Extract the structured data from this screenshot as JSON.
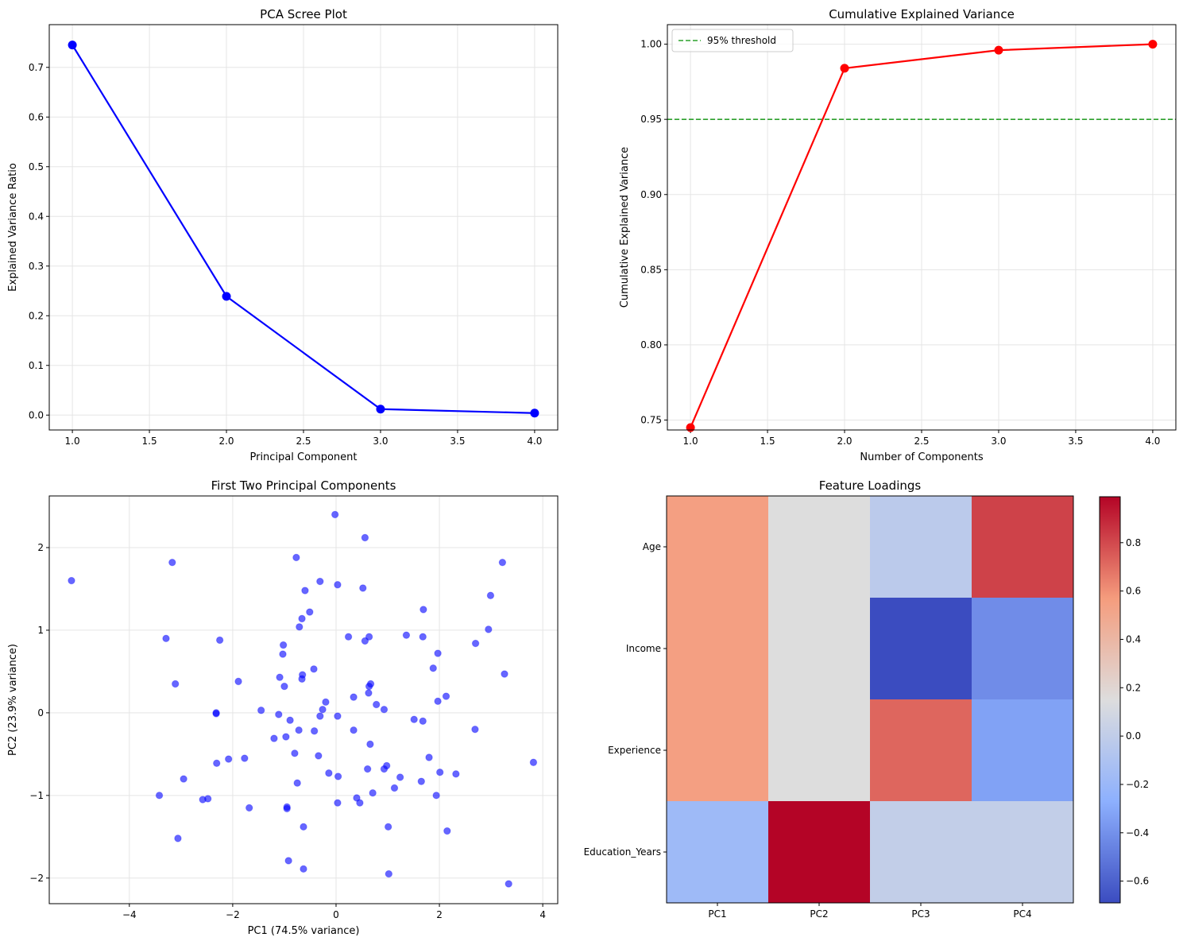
{
  "chart_data": [
    {
      "type": "line",
      "title": "PCA Scree Plot",
      "xlabel": "Principal Component",
      "ylabel": "Explained Variance Ratio",
      "x": [
        1,
        2,
        3,
        4
      ],
      "series": [
        {
          "values": [
            0.745,
            0.239,
            0.012,
            0.004
          ],
          "color": "#0000ff",
          "marker": "circle"
        }
      ],
      "xlim": [
        0.85,
        4.15
      ],
      "ylim": [
        -0.03,
        0.786
      ],
      "xticks": [
        1.0,
        1.5,
        2.0,
        2.5,
        3.0,
        3.5,
        4.0
      ],
      "xtick_labels": [
        "1.0",
        "1.5",
        "2.0",
        "2.5",
        "3.0",
        "3.5",
        "4.0"
      ],
      "yticks": [
        0.0,
        0.1,
        0.2,
        0.3,
        0.4,
        0.5,
        0.6,
        0.7
      ],
      "ytick_labels": [
        "0.0",
        "0.1",
        "0.2",
        "0.3",
        "0.4",
        "0.5",
        "0.6",
        "0.7"
      ],
      "grid": true
    },
    {
      "type": "line",
      "title": "Cumulative Explained Variance",
      "xlabel": "Number of Components",
      "ylabel": "Cumulative Explained Variance",
      "x": [
        1,
        2,
        3,
        4
      ],
      "series": [
        {
          "values": [
            0.745,
            0.984,
            0.996,
            1.0
          ],
          "color": "#ff0000",
          "marker": "circle"
        }
      ],
      "hline": {
        "y": 0.95,
        "label": "95% threshold",
        "color": "#2ca02c",
        "style": "dashed"
      },
      "legend": "top-left",
      "xlim": [
        0.85,
        4.15
      ],
      "ylim": [
        0.7434,
        1.013
      ],
      "xticks": [
        1.0,
        1.5,
        2.0,
        2.5,
        3.0,
        3.5,
        4.0
      ],
      "xtick_labels": [
        "1.0",
        "1.5",
        "2.0",
        "2.5",
        "3.0",
        "3.5",
        "4.0"
      ],
      "yticks": [
        0.75,
        0.8,
        0.85,
        0.9,
        0.95,
        1.0
      ],
      "ytick_labels": [
        "0.75",
        "0.80",
        "0.85",
        "0.90",
        "0.95",
        "1.00"
      ],
      "grid": true
    },
    {
      "type": "scatter",
      "title": "First Two Principal Components",
      "xlabel": "PC1 (74.5% variance)",
      "ylabel": "PC2 (23.9% variance)",
      "color": "#0000ff",
      "alpha": 0.6,
      "xlim": [
        -5.55,
        4.29
      ],
      "ylim": [
        -2.31,
        2.625
      ],
      "xticks": [
        -4,
        -2,
        0,
        2,
        4
      ],
      "xtick_labels": [
        "−4",
        "−2",
        "0",
        "2",
        "4"
      ],
      "yticks": [
        -2,
        -1,
        0,
        1,
        2
      ],
      "ytick_labels": [
        "−2",
        "−1",
        "0",
        "1",
        "2"
      ],
      "grid": true,
      "points": [
        [
          -0.02,
          2.4
        ],
        [
          -3.17,
          1.82
        ],
        [
          -5.12,
          1.6
        ],
        [
          -0.77,
          1.88
        ],
        [
          -0.31,
          1.59
        ],
        [
          0.03,
          1.55
        ],
        [
          -0.6,
          1.48
        ],
        [
          -0.51,
          1.22
        ],
        [
          -0.66,
          1.14
        ],
        [
          -0.71,
          1.04
        ],
        [
          -3.29,
          0.9
        ],
        [
          -2.25,
          0.88
        ],
        [
          -1.02,
          0.82
        ],
        [
          -1.03,
          0.71
        ],
        [
          -0.43,
          0.53
        ],
        [
          -1.09,
          0.43
        ],
        [
          -0.65,
          0.46
        ],
        [
          -0.66,
          0.41
        ],
        [
          -1.0,
          0.32
        ],
        [
          -3.11,
          0.35
        ],
        [
          -1.89,
          0.38
        ],
        [
          -2.32,
          0.0
        ],
        [
          -2.32,
          -0.01
        ],
        [
          -1.45,
          0.03
        ],
        [
          -1.11,
          -0.02
        ],
        [
          -0.89,
          -0.09
        ],
        [
          -0.2,
          0.13
        ],
        [
          -0.26,
          0.04
        ],
        [
          -0.31,
          -0.04
        ],
        [
          0.03,
          -0.04
        ],
        [
          -0.72,
          -0.21
        ],
        [
          -0.42,
          -0.22
        ],
        [
          -1.2,
          -0.31
        ],
        [
          -0.97,
          -0.29
        ],
        [
          -0.8,
          -0.49
        ],
        [
          -0.34,
          -0.52
        ],
        [
          -2.31,
          -0.61
        ],
        [
          -2.08,
          -0.56
        ],
        [
          -1.77,
          -0.55
        ],
        [
          -0.14,
          -0.73
        ],
        [
          0.04,
          -0.77
        ],
        [
          -0.75,
          -0.85
        ],
        [
          -2.95,
          -0.8
        ],
        [
          -3.42,
          -1.0
        ],
        [
          -2.58,
          -1.05
        ],
        [
          -2.48,
          -1.04
        ],
        [
          -1.68,
          -1.15
        ],
        [
          -0.95,
          -1.14
        ],
        [
          -0.95,
          -1.16
        ],
        [
          0.03,
          -1.09
        ],
        [
          -0.63,
          -1.38
        ],
        [
          -3.06,
          -1.52
        ],
        [
          -0.92,
          -1.79
        ],
        [
          -0.63,
          -1.89
        ],
        [
          0.56,
          2.12
        ],
        [
          3.22,
          1.82
        ],
        [
          0.52,
          1.51
        ],
        [
          2.99,
          1.42
        ],
        [
          1.69,
          1.25
        ],
        [
          0.24,
          0.92
        ],
        [
          0.56,
          0.87
        ],
        [
          0.64,
          0.92
        ],
        [
          1.36,
          0.94
        ],
        [
          1.68,
          0.92
        ],
        [
          2.95,
          1.01
        ],
        [
          2.7,
          0.84
        ],
        [
          1.97,
          0.72
        ],
        [
          1.88,
          0.54
        ],
        [
          3.26,
          0.47
        ],
        [
          0.67,
          0.35
        ],
        [
          0.64,
          0.32
        ],
        [
          0.34,
          0.19
        ],
        [
          0.63,
          0.24
        ],
        [
          0.78,
          0.1
        ],
        [
          0.93,
          0.04
        ],
        [
          2.13,
          0.2
        ],
        [
          1.97,
          0.14
        ],
        [
          1.51,
          -0.08
        ],
        [
          1.68,
          -0.1
        ],
        [
          2.69,
          -0.2
        ],
        [
          0.34,
          -0.21
        ],
        [
          0.66,
          -0.38
        ],
        [
          1.8,
          -0.54
        ],
        [
          3.82,
          -0.6
        ],
        [
          0.98,
          -0.64
        ],
        [
          0.93,
          -0.68
        ],
        [
          0.61,
          -0.68
        ],
        [
          1.24,
          -0.78
        ],
        [
          2.01,
          -0.72
        ],
        [
          2.32,
          -0.74
        ],
        [
          1.65,
          -0.83
        ],
        [
          1.13,
          -0.91
        ],
        [
          0.71,
          -0.97
        ],
        [
          0.4,
          -1.03
        ],
        [
          0.46,
          -1.09
        ],
        [
          1.94,
          -1.0
        ],
        [
          1.01,
          -1.38
        ],
        [
          2.15,
          -1.43
        ],
        [
          1.02,
          -1.95
        ],
        [
          3.34,
          -2.07
        ]
      ]
    },
    {
      "type": "heatmap",
      "title": "Feature Loadings",
      "colormap": "coolwarm",
      "columns": [
        "PC1",
        "PC2",
        "PC3",
        "PC4"
      ],
      "rows": [
        "Age",
        "Income",
        "Experience",
        "Education_Years"
      ],
      "values": [
        [
          0.55,
          0.15,
          -0.03,
          0.82
        ],
        [
          0.55,
          0.15,
          -0.69,
          -0.42
        ],
        [
          0.55,
          0.15,
          0.72,
          -0.33
        ],
        [
          -0.18,
          0.99,
          0.01,
          0.01
        ]
      ],
      "vmin": -0.69,
      "vmax": 0.99,
      "colorbar_ticks": [
        -0.6,
        -0.4,
        -0.2,
        0.0,
        0.2,
        0.4,
        0.6,
        0.8
      ],
      "colorbar_tick_labels": [
        "−0.6",
        "−0.4",
        "−0.2",
        "0.0",
        "0.2",
        "0.4",
        "0.6",
        "0.8"
      ]
    }
  ]
}
